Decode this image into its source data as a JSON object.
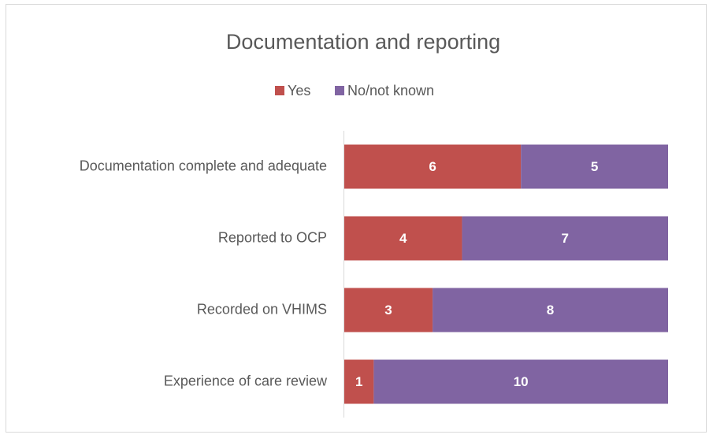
{
  "chart_data": {
    "type": "stacked_bar_horizontal",
    "title": "Documentation and reporting",
    "categories": [
      "Documentation complete and adequate",
      "Reported to OCP",
      "Recorded on VHIMS",
      "Experience of care review"
    ],
    "series": [
      {
        "name": "Yes",
        "color": "#c0504d",
        "values": [
          6,
          4,
          3,
          1
        ]
      },
      {
        "name": "No/not known",
        "color": "#8064a2",
        "values": [
          5,
          7,
          8,
          10
        ]
      }
    ],
    "xlim": [
      0,
      11
    ],
    "legend": "top"
  }
}
